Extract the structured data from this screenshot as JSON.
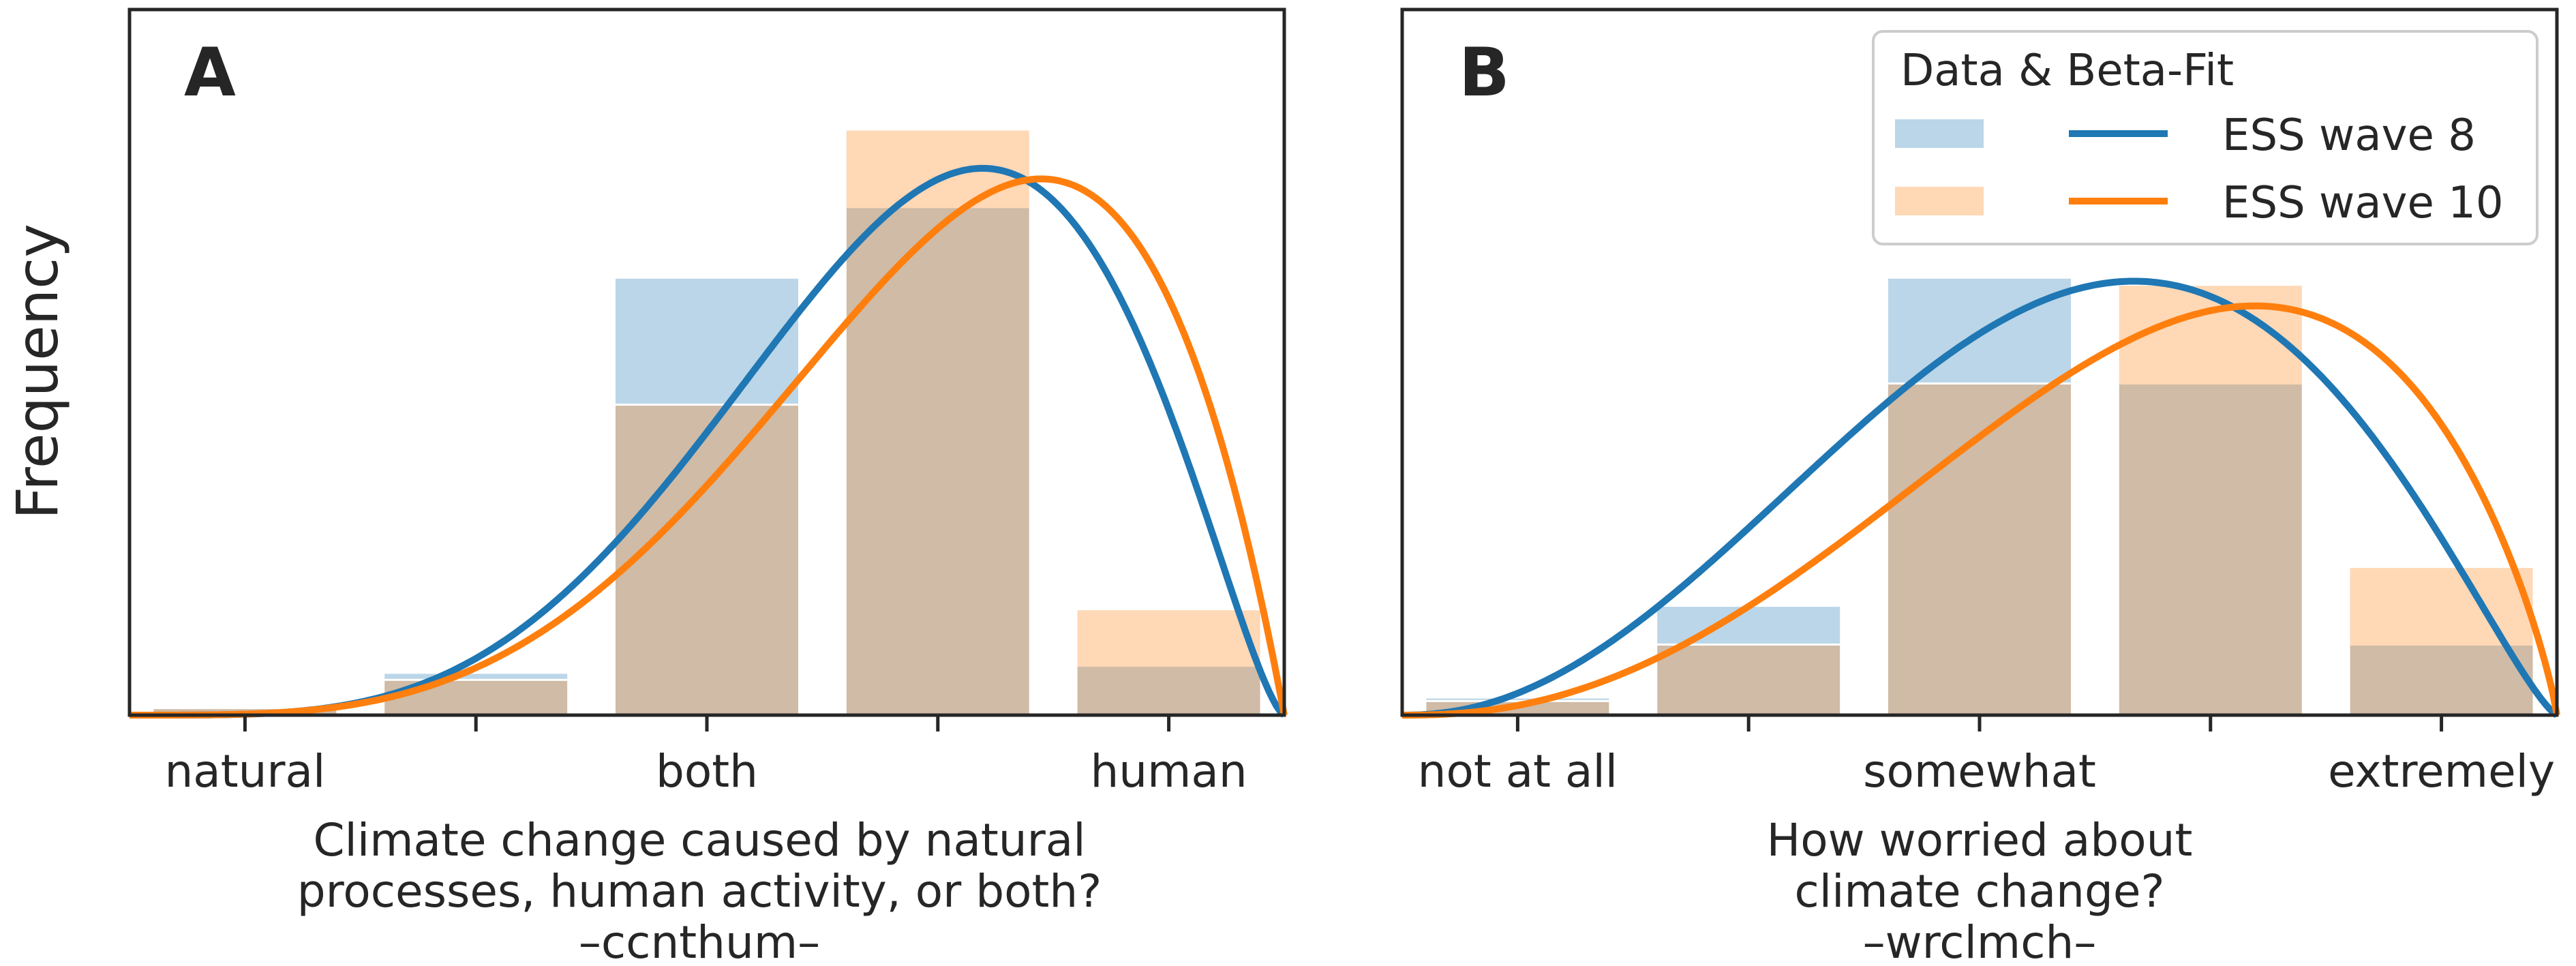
{
  "figure": {
    "ylabel": "Frequency"
  },
  "legend": {
    "title": "Data & Beta-Fit",
    "entries": [
      {
        "label": "ESS wave 8",
        "bar_color": "#1f77b4",
        "line_color": "#1f77b4"
      },
      {
        "label": "ESS wave 10",
        "bar_color": "#ff7f0e",
        "line_color": "#ff7f0e"
      }
    ],
    "placement": "top-right of panel B"
  },
  "chart_data": [
    {
      "panel_label": "A",
      "type": "bar",
      "overlay": "beta-fit line",
      "categories": [
        "1",
        "2",
        "3",
        "4",
        "5"
      ],
      "tick_labels": [
        "natural",
        "",
        "both",
        "",
        "human"
      ],
      "xlabel_lines": [
        "Climate change caused by natural",
        "processes, human activity, or both?",
        "–ccnthum–"
      ],
      "ylim": [
        0,
        1.0
      ],
      "y_ticks_shown": false,
      "grid": false,
      "series": [
        {
          "name": "ESS wave 8",
          "color": "#1f77b4",
          "values": [
            0.01,
            0.06,
            0.62,
            0.72,
            0.07
          ],
          "fit": {
            "peak_x": 3.5,
            "peak_y": 0.775,
            "alpha": 5.1,
            "beta": 2.45
          }
        },
        {
          "name": "ESS wave 10",
          "color": "#ff7f0e",
          "values": [
            0.01,
            0.05,
            0.44,
            0.83,
            0.15
          ],
          "fit": {
            "peak_x": 3.7,
            "peak_y": 0.76,
            "alpha": 4.75,
            "beta": 2.0
          }
        }
      ]
    },
    {
      "panel_label": "B",
      "type": "bar",
      "overlay": "beta-fit line",
      "categories": [
        "1",
        "2",
        "3",
        "4",
        "5"
      ],
      "tick_labels": [
        "not at all",
        "",
        "somewhat",
        "",
        "extremely"
      ],
      "xlabel_lines": [
        "How worried about",
        "climate change?",
        "–wrclmch–"
      ],
      "ylim": [
        0,
        1.0
      ],
      "y_ticks_shown": false,
      "grid": false,
      "series": [
        {
          "name": "ESS wave 8",
          "color": "#1f77b4",
          "values": [
            0.025,
            0.155,
            0.62,
            0.47,
            0.1
          ],
          "fit": {
            "peak_x": 3.5,
            "peak_y": 0.615,
            "alpha": 3.25,
            "beta": 2.3
          }
        },
        {
          "name": "ESS wave 10",
          "color": "#ff7f0e",
          "values": [
            0.02,
            0.1,
            0.47,
            0.61,
            0.21
          ],
          "fit": {
            "peak_x": 3.75,
            "peak_y": 0.58,
            "alpha": 3.4,
            "beta": 1.85
          }
        }
      ]
    }
  ]
}
